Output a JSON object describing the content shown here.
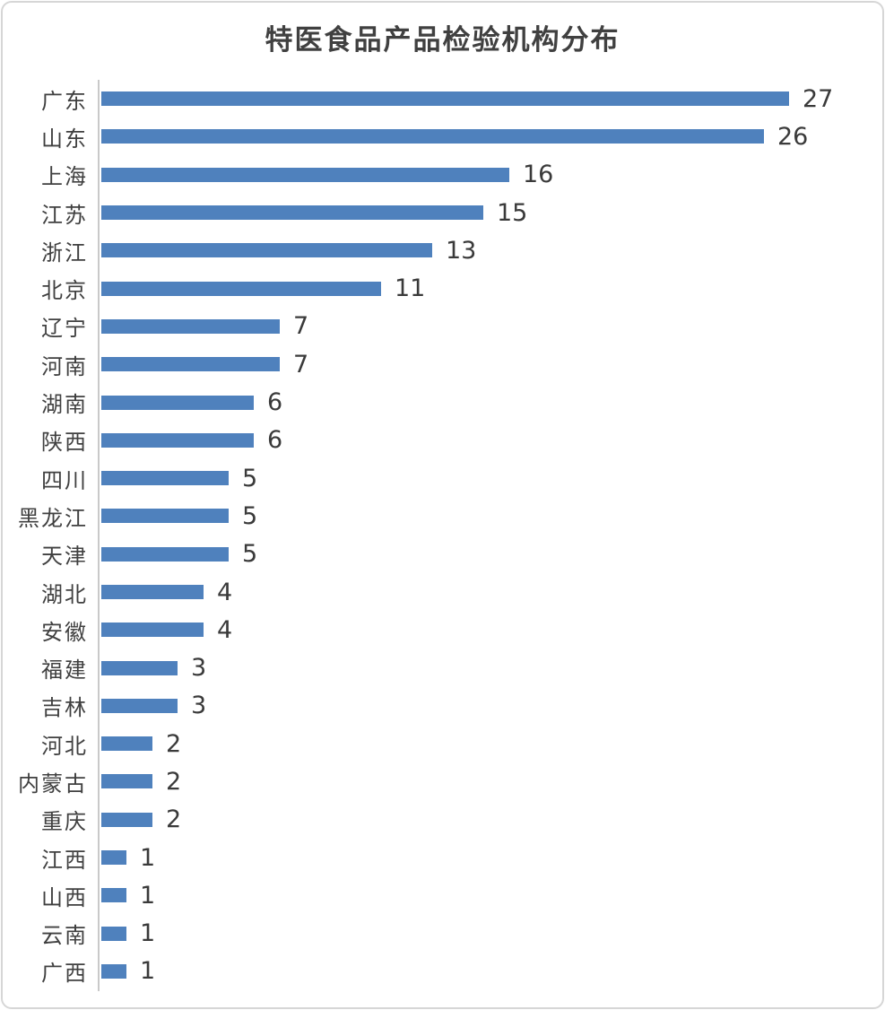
{
  "chart_data": {
    "type": "bar",
    "orientation": "horizontal",
    "title": "特医食品产品检验机构分布",
    "categories": [
      "广东",
      "山东",
      "上海",
      "江苏",
      "浙江",
      "北京",
      "辽宁",
      "河南",
      "湖南",
      "陕西",
      "四川",
      "黑龙江",
      "天津",
      "湖北",
      "安徽",
      "福建",
      "吉林",
      "河北",
      "内蒙古",
      "重庆",
      "江西",
      "山西",
      "云南",
      "广西"
    ],
    "values": [
      27,
      26,
      16,
      15,
      13,
      11,
      7,
      7,
      6,
      6,
      5,
      5,
      5,
      4,
      4,
      3,
      3,
      2,
      2,
      2,
      1,
      1,
      1,
      1
    ],
    "xlabel": "",
    "ylabel": "",
    "xlim": [
      0,
      27
    ],
    "grid": "off",
    "legend": "none",
    "value_labels": "shown-at-bar-end",
    "bar_color": "#4f81bd",
    "title_color": "#404040",
    "category_label_color": "#404040",
    "value_label_color": "#3a3a3a",
    "axis_line_color": "#c9c9c9",
    "frame_border_color": "#d6d6d6"
  }
}
